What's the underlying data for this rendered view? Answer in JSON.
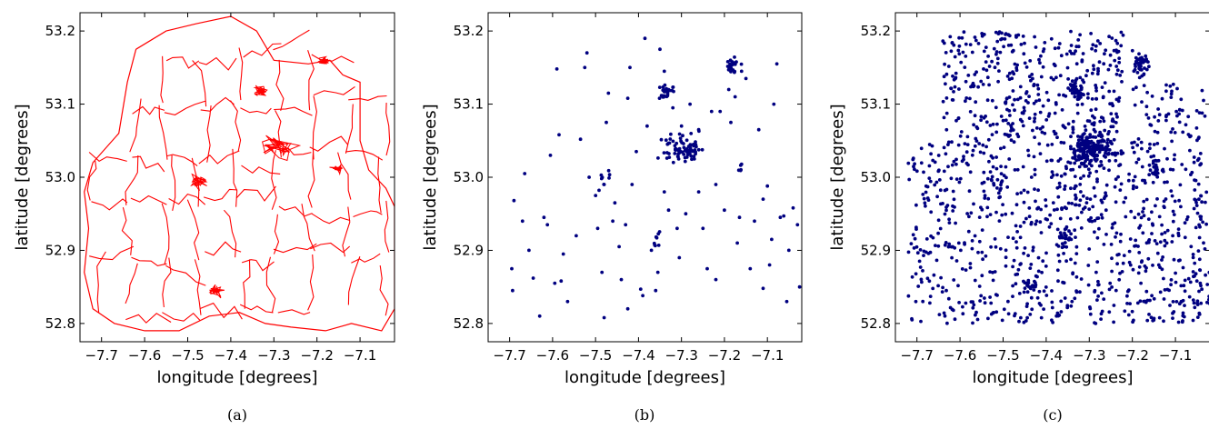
{
  "chart_data": [
    {
      "type": "map",
      "caption": "(a)",
      "xlabel": "longitude [degrees]",
      "ylabel": "latitude [degrees]",
      "xlim": [
        -7.75,
        -7.02
      ],
      "ylim": [
        52.775,
        53.225
      ],
      "xticks": [
        -7.7,
        -7.6,
        -7.5,
        -7.4,
        -7.3,
        -7.2,
        -7.1
      ],
      "xtick_labels": [
        "−7.7",
        "−7.6",
        "−7.5",
        "−7.4",
        "−7.3",
        "−7.2",
        "−7.1"
      ],
      "yticks": [
        52.8,
        52.9,
        53.0,
        53.1,
        53.2
      ],
      "ytick_labels": [
        "52.8",
        "52.9",
        "53.0",
        "53.1",
        "53.2"
      ],
      "color": "#ff0000",
      "description_of_marks": "boundary polylines (electoral division outlines)"
    },
    {
      "type": "scatter",
      "caption": "(b)",
      "xlabel": "longitude [degrees]",
      "ylabel": "latitude [degrees]",
      "xlim": [
        -7.75,
        -7.02
      ],
      "ylim": [
        52.775,
        53.225
      ],
      "xticks": [
        -7.7,
        -7.6,
        -7.5,
        -7.4,
        -7.3,
        -7.2,
        -7.1
      ],
      "xtick_labels": [
        "−7.7",
        "−7.6",
        "−7.5",
        "−7.4",
        "−7.3",
        "−7.2",
        "−7.1"
      ],
      "yticks": [
        52.8,
        52.9,
        53.0,
        53.1,
        53.2
      ],
      "ytick_labels": [
        "52.8",
        "52.9",
        "53.0",
        "53.1",
        "53.2"
      ],
      "color": "#000080",
      "clusters": [
        {
          "lon": -7.3,
          "lat": 53.04,
          "count": 80,
          "spread_lon": 0.022,
          "spread_lat": 0.009
        },
        {
          "lon": -7.335,
          "lat": 53.118,
          "count": 28,
          "spread_lon": 0.008,
          "spread_lat": 0.005
        },
        {
          "lon": -7.183,
          "lat": 53.155,
          "count": 20,
          "spread_lon": 0.007,
          "spread_lat": 0.007
        },
        {
          "lon": -7.48,
          "lat": 52.998,
          "count": 8,
          "spread_lon": 0.008,
          "spread_lat": 0.008
        },
        {
          "lon": -7.355,
          "lat": 52.918,
          "count": 8,
          "spread_lon": 0.006,
          "spread_lat": 0.008
        },
        {
          "lon": -7.16,
          "lat": 53.012,
          "count": 5,
          "spread_lon": 0.006,
          "spread_lat": 0.006
        }
      ],
      "points": [
        [
          -7.695,
          52.875
        ],
        [
          -7.693,
          52.845
        ],
        [
          -7.69,
          52.968
        ],
        [
          -7.67,
          52.94
        ],
        [
          -7.665,
          53.005
        ],
        [
          -7.655,
          52.9
        ],
        [
          -7.645,
          52.862
        ],
        [
          -7.63,
          52.81
        ],
        [
          -7.62,
          52.945
        ],
        [
          -7.612,
          52.935
        ],
        [
          -7.605,
          53.03
        ],
        [
          -7.595,
          52.855
        ],
        [
          -7.59,
          53.148
        ],
        [
          -7.585,
          53.058
        ],
        [
          -7.58,
          52.858
        ],
        [
          -7.575,
          52.895
        ],
        [
          -7.565,
          52.83
        ],
        [
          -7.545,
          52.92
        ],
        [
          -7.535,
          53.052
        ],
        [
          -7.525,
          53.15
        ],
        [
          -7.52,
          53.17
        ],
        [
          -7.515,
          53.0
        ],
        [
          -7.5,
          52.975
        ],
        [
          -7.495,
          52.93
        ],
        [
          -7.485,
          52.87
        ],
        [
          -7.48,
          52.808
        ],
        [
          -7.475,
          53.075
        ],
        [
          -7.47,
          53.115
        ],
        [
          -7.46,
          52.94
        ],
        [
          -7.455,
          52.965
        ],
        [
          -7.445,
          52.905
        ],
        [
          -7.44,
          52.86
        ],
        [
          -7.43,
          52.935
        ],
        [
          -7.425,
          52.82
        ],
        [
          -7.42,
          53.15
        ],
        [
          -7.415,
          52.99
        ],
        [
          -7.405,
          53.035
        ],
        [
          -7.395,
          52.847
        ],
        [
          -7.39,
          52.838
        ],
        [
          -7.385,
          53.19
        ],
        [
          -7.38,
          53.07
        ],
        [
          -7.37,
          52.9
        ],
        [
          -7.36,
          52.845
        ],
        [
          -7.355,
          52.87
        ],
        [
          -7.35,
          53.175
        ],
        [
          -7.34,
          53.145
        ],
        [
          -7.33,
          52.955
        ],
        [
          -7.32,
          53.095
        ],
        [
          -7.31,
          52.93
        ],
        [
          -7.305,
          52.89
        ],
        [
          -7.3,
          53.07
        ],
        [
          -7.29,
          52.95
        ],
        [
          -7.28,
          53.1
        ],
        [
          -7.27,
          53.025
        ],
        [
          -7.26,
          52.98
        ],
        [
          -7.25,
          52.93
        ],
        [
          -7.24,
          52.875
        ],
        [
          -7.23,
          53.09
        ],
        [
          -7.22,
          52.99
        ],
        [
          -7.21,
          53.09
        ],
        [
          -7.2,
          52.955
        ],
        [
          -7.19,
          53.12
        ],
        [
          -7.185,
          53.075
        ],
        [
          -7.175,
          53.11
        ],
        [
          -7.17,
          52.91
        ],
        [
          -7.165,
          52.945
        ],
        [
          -7.16,
          53.145
        ],
        [
          -7.15,
          53.135
        ],
        [
          -7.14,
          52.875
        ],
        [
          -7.13,
          52.94
        ],
        [
          -7.12,
          53.065
        ],
        [
          -7.11,
          52.97
        ],
        [
          -7.1,
          52.988
        ],
        [
          -7.095,
          52.88
        ],
        [
          -7.09,
          52.915
        ],
        [
          -7.085,
          53.1
        ],
        [
          -7.078,
          53.155
        ],
        [
          -7.07,
          52.945
        ],
        [
          -7.062,
          52.947
        ],
        [
          -7.055,
          52.83
        ],
        [
          -7.05,
          52.9
        ],
        [
          -7.04,
          52.958
        ],
        [
          -7.03,
          52.935
        ],
        [
          -7.025,
          52.85
        ],
        [
          -7.22,
          52.86
        ],
        [
          -7.26,
          53.065
        ],
        [
          -7.425,
          53.108
        ],
        [
          -7.48,
          52.99
        ],
        [
          -7.11,
          52.848
        ],
        [
          -7.34,
          52.98
        ]
      ]
    },
    {
      "type": "scatter",
      "caption": "(c)",
      "xlabel": "longitude [degrees]",
      "ylabel": "latitude [degrees]",
      "xlim": [
        -7.75,
        -7.02
      ],
      "ylim": [
        52.775,
        53.225
      ],
      "xticks": [
        -7.7,
        -7.6,
        -7.5,
        -7.4,
        -7.3,
        -7.2,
        -7.1
      ],
      "xtick_labels": [
        "−7.7",
        "−7.6",
        "−7.5",
        "−7.4",
        "−7.3",
        "−7.2",
        "−7.1"
      ],
      "yticks": [
        52.8,
        52.9,
        53.0,
        53.1,
        53.2
      ],
      "ytick_labels": [
        "52.8",
        "52.9",
        "53.0",
        "53.1",
        "53.2"
      ],
      "color": "#000080",
      "clusters": [
        {
          "lon": -7.295,
          "lat": 53.04,
          "count": 190,
          "spread_lon": 0.026,
          "spread_lat": 0.011
        },
        {
          "lon": -7.333,
          "lat": 53.118,
          "count": 45,
          "spread_lon": 0.009,
          "spread_lat": 0.006
        },
        {
          "lon": -7.183,
          "lat": 53.155,
          "count": 40,
          "spread_lon": 0.009,
          "spread_lat": 0.008
        },
        {
          "lon": -7.15,
          "lat": 53.012,
          "count": 22,
          "spread_lon": 0.008,
          "spread_lat": 0.008
        },
        {
          "lon": -7.355,
          "lat": 52.918,
          "count": 18,
          "spread_lon": 0.008,
          "spread_lat": 0.008
        },
        {
          "lon": -7.435,
          "lat": 52.845,
          "count": 18,
          "spread_lon": 0.01,
          "spread_lat": 0.008
        }
      ],
      "background_regions": [
        {
          "lon": [
            -7.72,
            -7.04
          ],
          "lat": [
            52.8,
            53.05
          ],
          "count": 820
        },
        {
          "lon": [
            -7.64,
            -7.22
          ],
          "lat": [
            53.05,
            53.2
          ],
          "count": 380
        },
        {
          "lon": [
            -7.2,
            -7.03
          ],
          "lat": [
            53.05,
            53.13
          ],
          "count": 60
        },
        {
          "lon": [
            -7.06,
            -7.02
          ],
          "lat": [
            52.8,
            52.98
          ],
          "count": 40
        }
      ]
    }
  ],
  "panel_a_shapes": {
    "outline": [
      [
        -7.62,
        53.175
      ],
      [
        -7.55,
        53.2
      ],
      [
        -7.48,
        53.21
      ],
      [
        -7.4,
        53.22
      ],
      [
        -7.34,
        53.2
      ],
      [
        -7.3,
        53.16
      ],
      [
        -7.22,
        53.155
      ],
      [
        -7.17,
        53.16
      ],
      [
        -7.14,
        53.14
      ],
      [
        -7.1,
        53.13
      ],
      [
        -7.1,
        53.05
      ],
      [
        -7.08,
        53.01
      ],
      [
        -7.04,
        52.985
      ],
      [
        -7.02,
        52.96
      ],
      [
        -7.02,
        52.82
      ],
      [
        -7.05,
        52.79
      ],
      [
        -7.12,
        52.8
      ],
      [
        -7.18,
        52.79
      ],
      [
        -7.26,
        52.795
      ],
      [
        -7.32,
        52.8
      ],
      [
        -7.38,
        52.815
      ],
      [
        -7.45,
        52.81
      ],
      [
        -7.52,
        52.79
      ],
      [
        -7.6,
        52.79
      ],
      [
        -7.67,
        52.8
      ],
      [
        -7.72,
        52.82
      ],
      [
        -7.74,
        52.87
      ],
      [
        -7.73,
        52.93
      ],
      [
        -7.74,
        52.98
      ],
      [
        -7.72,
        53.02
      ],
      [
        -7.66,
        53.06
      ],
      [
        -7.64,
        53.13
      ],
      [
        -7.62,
        53.175
      ]
    ]
  }
}
